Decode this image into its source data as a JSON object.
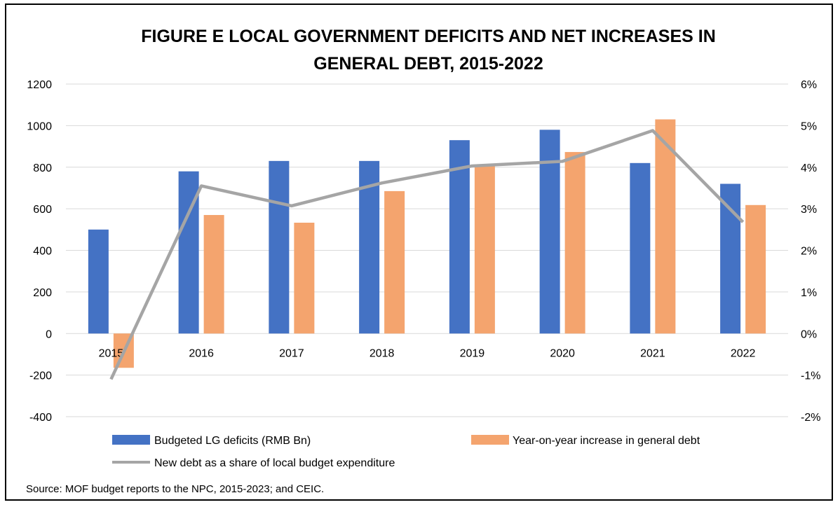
{
  "chart_data": {
    "type": "bar",
    "title_line1": "FIGURE E     LOCAL GOVERNMENT DEFICITS AND NET INCREASES IN",
    "title_line2": "GENERAL DEBT, 2015-2022",
    "categories": [
      "2015",
      "2016",
      "2017",
      "2018",
      "2019",
      "2020",
      "2021",
      "2022"
    ],
    "series": [
      {
        "name": "Budgeted LG deficits (RMB Bn)",
        "axis": "left",
        "kind": "bar",
        "color": "#4472C4",
        "values": [
          500,
          780,
          830,
          830,
          930,
          980,
          820,
          720
        ]
      },
      {
        "name": "Year-on-year increase in general debt",
        "axis": "left",
        "kind": "bar",
        "color": "#F4A46E",
        "values": [
          -165,
          570,
          533,
          685,
          810,
          873,
          1030,
          618
        ]
      },
      {
        "name": "New debt as a share of local budget expenditure",
        "axis": "right",
        "kind": "line",
        "color": "#A5A5A5",
        "values": [
          -1.1,
          3.55,
          3.07,
          3.62,
          4.03,
          4.14,
          4.88,
          2.68
        ]
      }
    ],
    "y_left": {
      "min": -400,
      "max": 1200,
      "step": 200,
      "ticks": [
        "1200",
        "1000",
        "800",
        "600",
        "400",
        "200",
        "0",
        "-200",
        "-400"
      ]
    },
    "y_right": {
      "min": -2,
      "max": 6,
      "step": 1,
      "ticks": [
        "6%",
        "5%",
        "4%",
        "3%",
        "2%",
        "1%",
        "0%",
        "-1%",
        "-2%"
      ]
    },
    "grid": true,
    "legend_position": "bottom",
    "source": "Source: MOF budget reports to the NPC, 2015-2023; and CEIC."
  }
}
